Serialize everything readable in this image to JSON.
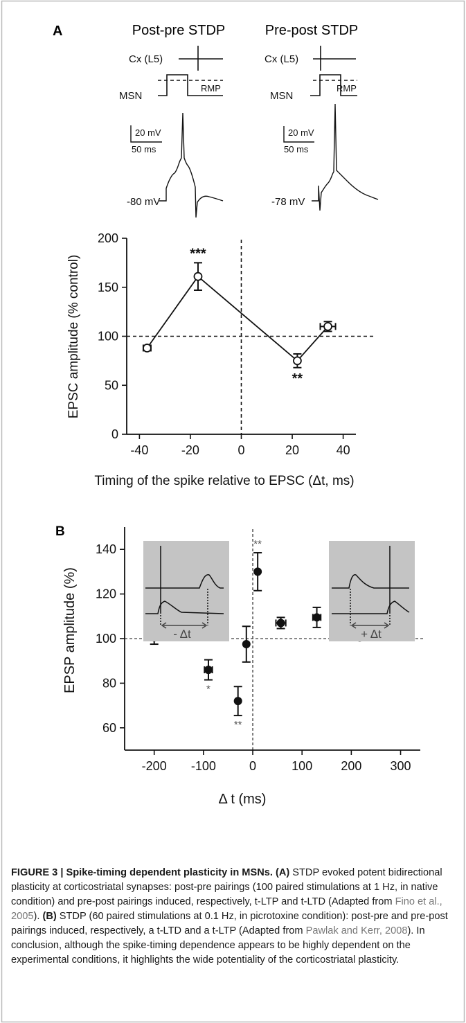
{
  "panel_a": {
    "label": "A",
    "protocol_left": {
      "title": "Post-pre STDP",
      "cx_label": "Cx (L5)",
      "msn_label": "MSN",
      "rmp_label": "RMP",
      "scale_mv": "20 mV",
      "scale_ms": "50 ms",
      "baseline": "-80 mV"
    },
    "protocol_right": {
      "title": "Pre-post STDP",
      "cx_label": "Cx (L5)",
      "msn_label": "MSN",
      "rmp_label": "RMP",
      "scale_mv": "20 mV",
      "scale_ms": "50 ms",
      "baseline": "-78 mV"
    }
  },
  "panel_b": {
    "label": "B",
    "inset_left_label": "- Δt",
    "inset_right_label": "+ Δt"
  },
  "caption": {
    "lead": "FIGURE 3 | Spike-timing dependent plasticity in MSNs.",
    "part_a_tag": "(A)",
    "part_a_text": " STDP evoked potent bidirectional plasticity at corticostriatal synapses: post-pre pairings (100 paired stimulations at 1 Hz, in native condition) and pre-post pairings induced, respectively, t-LTP and t-LTD (Adapted from ",
    "ref_a": "Fino et al., 2005",
    "part_a_end": "). ",
    "part_b_tag": "(B)",
    "part_b_text": " STDP (60 paired stimulations at 0.1 Hz, in picrotoxine condition): post-pre and pre-post pairings induced, respectively, a t-LTD and a t-LTP (Adapted from ",
    "ref_b": "Pawlak and Kerr, 2008",
    "part_b_end": "). In conclusion, although the spike-timing dependence appears to be highly dependent on the experimental conditions, it highlights the wide potentiality of the corticostriatal plasticity."
  },
  "chart_data": [
    {
      "type": "line",
      "xlabel": "Timing of the spike relative to EPSC (Δt, ms)",
      "ylabel": "EPSC amplitude (% control)",
      "xlim": [
        -45,
        45
      ],
      "ylim": [
        0,
        200
      ],
      "x_ticks": [
        -40,
        -20,
        0,
        20,
        40
      ],
      "y_ticks": [
        0,
        50,
        100,
        150,
        200
      ],
      "reference_line_y": 100,
      "reference_line_x": 0,
      "marker": "open-circle",
      "points": [
        {
          "x": -37,
          "y": 88,
          "yerr": 2,
          "xerr": 1.5,
          "sig": ""
        },
        {
          "x": -17,
          "y": 161,
          "yerr": 14,
          "xerr": 0,
          "sig": "***"
        },
        {
          "x": 22,
          "y": 75,
          "yerr": 7,
          "xerr": 0,
          "sig": "**"
        },
        {
          "x": 34,
          "y": 110,
          "yerr": 5,
          "xerr": 3,
          "sig": ""
        }
      ]
    },
    {
      "type": "scatter",
      "xlabel": "Δ t (ms)",
      "ylabel": "EPSP amplitude (%)",
      "xlim": [
        -260,
        340
      ],
      "ylim": [
        50,
        150
      ],
      "x_ticks": [
        -200,
        -100,
        0,
        100,
        200,
        300
      ],
      "y_ticks": [
        60,
        80,
        100,
        120,
        140
      ],
      "reference_line_y": 100,
      "reference_line_x": 0,
      "marker": "filled-circle",
      "points": [
        {
          "x": -200,
          "y": 100.5,
          "yerr": 3,
          "xerr": 0,
          "sig": ""
        },
        {
          "x": -90,
          "y": 86,
          "yerr": 4.5,
          "xerr": 8,
          "sig": "*"
        },
        {
          "x": -30,
          "y": 72,
          "yerr": 6.5,
          "xerr": 0,
          "sig": "**"
        },
        {
          "x": -13,
          "y": 97.5,
          "yerr": 8,
          "xerr": 0,
          "sig": ""
        },
        {
          "x": 10,
          "y": 130,
          "yerr": 8.5,
          "xerr": 0,
          "sig": "**"
        },
        {
          "x": 57,
          "y": 107,
          "yerr": 2.5,
          "xerr": 10,
          "sig": ""
        },
        {
          "x": 130,
          "y": 109.5,
          "yerr": 4.5,
          "xerr": 8,
          "sig": ""
        },
        {
          "x": 217,
          "y": 100.5,
          "yerr": 1,
          "xerr": 15,
          "sig": ""
        }
      ]
    }
  ]
}
